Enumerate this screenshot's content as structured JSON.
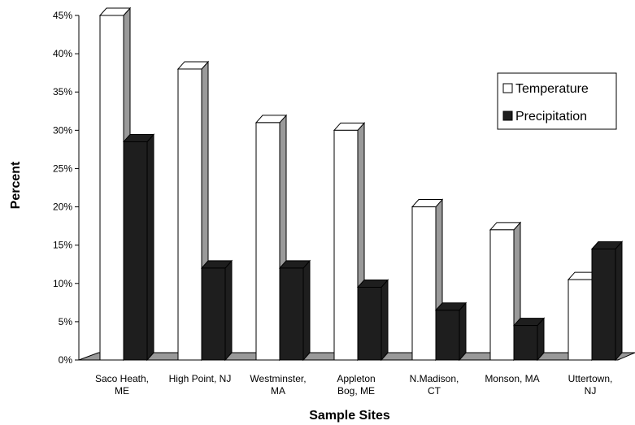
{
  "chart_data": {
    "type": "bar",
    "style": "3d",
    "title": "",
    "xlabel": "Sample Sites",
    "ylabel": "Percent",
    "ylim": [
      0,
      45
    ],
    "yticks": [
      "0%",
      "5%",
      "10%",
      "15%",
      "20%",
      "25%",
      "30%",
      "35%",
      "40%",
      "45%"
    ],
    "categories": [
      [
        "Saco Heath,",
        "ME"
      ],
      [
        "High Point, NJ"
      ],
      [
        "Westminster,",
        "MA"
      ],
      [
        "Appleton",
        "Bog, ME"
      ],
      [
        "N.Madison,",
        "CT"
      ],
      [
        "Monson, MA"
      ],
      [
        "Uttertown,",
        "NJ"
      ]
    ],
    "series": [
      {
        "name": "Temperature",
        "values": [
          45,
          38,
          31,
          30,
          20,
          17,
          10.5
        ],
        "color": "#ffffff",
        "side_color": "#9a9a9a"
      },
      {
        "name": "Precipitation",
        "values": [
          28.5,
          12,
          12,
          9.5,
          6.5,
          4.5,
          14.5
        ],
        "color": "#1e1e1e",
        "side_color": "#1e1e1e"
      }
    ],
    "floor_color": "#999999",
    "grid": false,
    "legend_position": "top-right"
  }
}
